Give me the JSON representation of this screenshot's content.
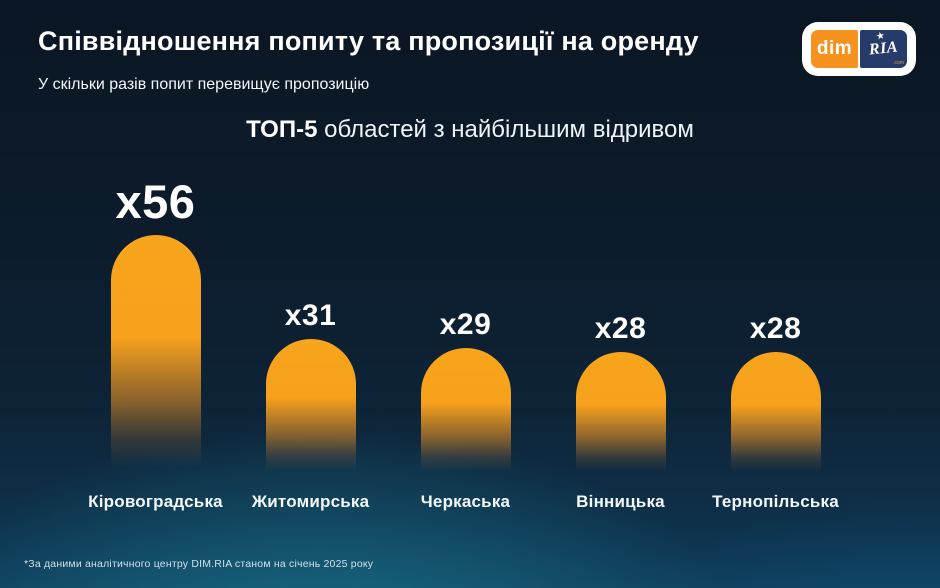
{
  "header": {
    "title": "Співвідношення попиту та пропозиції на оренду",
    "subtitle": "У скільки разів попит перевищує пропозицію",
    "logo": {
      "dim": "dim",
      "ria": "RIA",
      "star": "★",
      "com": ".com"
    }
  },
  "heading": {
    "emphasis": "ТОП-5",
    "rest": "областей з найбільшим відривом"
  },
  "chart_data": {
    "type": "bar",
    "title": "ТОП-5 областей з найбільшим відривом",
    "categories": [
      "Кіровоградська",
      "Житомирська",
      "Черкаська",
      "Вінницька",
      "Тернопільська"
    ],
    "values": [
      56,
      31,
      29,
      28,
      28
    ],
    "value_labels": [
      "x56",
      "x31",
      "x29",
      "x28",
      "x28"
    ],
    "unit": "times demand exceeds supply",
    "ylim": [
      0,
      60
    ],
    "grid": false,
    "legend": false,
    "bar_color": "#F7A11D",
    "value_label_color": "#FFFFFF",
    "category_label_color": "#F4F8FB"
  },
  "footer": {
    "note": "*За даними аналітичного центру DIM.RIA станом на січень 2025 року"
  },
  "colors": {
    "background_top": "#0B1623",
    "background_mid": "#0D2336",
    "background_glow_teal": "#1A768E",
    "background_bottom_right": "#10527C",
    "accent_orange": "#F7A11D",
    "logo_orange": "#F6921E",
    "logo_navy": "#253C6B",
    "text": "#FFFFFF"
  }
}
